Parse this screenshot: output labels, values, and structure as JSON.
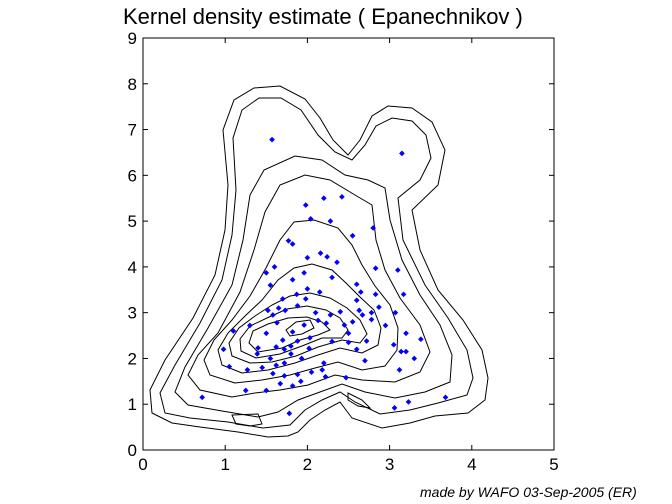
{
  "chart_data": {
    "type": "contour",
    "title": "Kernel density estimate ( Epanechnikov )",
    "xlim": [
      0,
      5
    ],
    "ylim": [
      0,
      9
    ],
    "xticks": [
      "0",
      "1",
      "2",
      "3",
      "4",
      "5"
    ],
    "yticks": [
      "0",
      "1",
      "2",
      "3",
      "4",
      "5",
      "6",
      "7",
      "8",
      "9"
    ],
    "grid": false,
    "colors": {
      "points": "#0000ff",
      "contours": "#000000"
    },
    "points": [
      [
        1.57,
        6.78
      ],
      [
        3.15,
        6.48
      ],
      [
        2.2,
        5.5
      ],
      [
        2.42,
        5.53
      ],
      [
        1.98,
        5.35
      ],
      [
        2.04,
        5.05
      ],
      [
        2.28,
        5.0
      ],
      [
        2.55,
        4.68
      ],
      [
        2.8,
        4.85
      ],
      [
        1.77,
        4.57
      ],
      [
        1.82,
        4.5
      ],
      [
        2.16,
        4.3
      ],
      [
        2.24,
        4.22
      ],
      [
        2.36,
        4.1
      ],
      [
        2.0,
        4.2
      ],
      [
        1.6,
        4.0
      ],
      [
        1.5,
        3.87
      ],
      [
        2.83,
        3.97
      ],
      [
        3.1,
        3.93
      ],
      [
        1.96,
        3.87
      ],
      [
        2.3,
        3.77
      ],
      [
        1.82,
        3.72
      ],
      [
        1.55,
        3.6
      ],
      [
        2.6,
        3.62
      ],
      [
        2.0,
        3.52
      ],
      [
        2.15,
        3.45
      ],
      [
        1.87,
        3.4
      ],
      [
        1.7,
        3.3
      ],
      [
        2.65,
        3.45
      ],
      [
        2.83,
        3.4
      ],
      [
        3.17,
        3.4
      ],
      [
        1.98,
        3.3
      ],
      [
        2.6,
        3.27
      ],
      [
        1.88,
        3.15
      ],
      [
        1.52,
        3.05
      ],
      [
        1.58,
        2.95
      ],
      [
        1.65,
        3.1
      ],
      [
        1.73,
        3.05
      ],
      [
        2.1,
        3.0
      ],
      [
        2.28,
        2.95
      ],
      [
        2.4,
        3.02
      ],
      [
        2.63,
        3.05
      ],
      [
        2.78,
        3.0
      ],
      [
        2.87,
        3.12
      ],
      [
        3.07,
        3.0
      ],
      [
        1.3,
        2.72
      ],
      [
        1.63,
        2.78
      ],
      [
        1.96,
        2.73
      ],
      [
        2.13,
        2.83
      ],
      [
        2.23,
        2.77
      ],
      [
        2.45,
        2.73
      ],
      [
        2.55,
        2.8
      ],
      [
        2.67,
        2.95
      ],
      [
        2.78,
        2.85
      ],
      [
        2.95,
        2.72
      ],
      [
        1.1,
        2.6
      ],
      [
        1.5,
        2.55
      ],
      [
        1.82,
        2.58
      ],
      [
        2.03,
        2.45
      ],
      [
        2.5,
        2.55
      ],
      [
        3.2,
        2.55
      ],
      [
        1.7,
        2.4
      ],
      [
        1.88,
        2.38
      ],
      [
        2.3,
        2.37
      ],
      [
        2.5,
        2.35
      ],
      [
        2.72,
        2.38
      ],
      [
        3.05,
        2.3
      ],
      [
        3.38,
        2.42
      ],
      [
        0.98,
        2.2
      ],
      [
        1.4,
        2.23
      ],
      [
        1.62,
        2.25
      ],
      [
        1.72,
        2.2
      ],
      [
        1.8,
        2.27
      ],
      [
        2.02,
        2.22
      ],
      [
        2.6,
        2.2
      ],
      [
        3.2,
        2.15
      ],
      [
        3.14,
        2.15
      ],
      [
        1.39,
        2.1
      ],
      [
        1.55,
        2.0
      ],
      [
        1.8,
        2.1
      ],
      [
        1.93,
        2.0
      ],
      [
        1.72,
        1.9
      ],
      [
        1.62,
        1.85
      ],
      [
        1.45,
        1.8
      ],
      [
        1.27,
        1.75
      ],
      [
        1.05,
        1.82
      ],
      [
        2.2,
        1.9
      ],
      [
        2.18,
        1.75
      ],
      [
        2.7,
        1.95
      ],
      [
        3.3,
        2.0
      ],
      [
        1.58,
        1.67
      ],
      [
        1.72,
        1.62
      ],
      [
        1.88,
        1.65
      ],
      [
        2.05,
        1.7
      ],
      [
        2.47,
        1.58
      ],
      [
        1.92,
        1.5
      ],
      [
        1.67,
        1.45
      ],
      [
        1.82,
        1.4
      ],
      [
        2.22,
        1.6
      ],
      [
        3.12,
        1.75
      ],
      [
        1.25,
        1.3
      ],
      [
        1.5,
        1.3
      ],
      [
        0.72,
        1.15
      ],
      [
        3.68,
        1.15
      ],
      [
        3.23,
        1.05
      ],
      [
        3.06,
        0.92
      ],
      [
        1.78,
        0.8
      ]
    ]
  },
  "footer": {
    "credit": "made by WAFO 03-Sep-2005 (ER)"
  }
}
